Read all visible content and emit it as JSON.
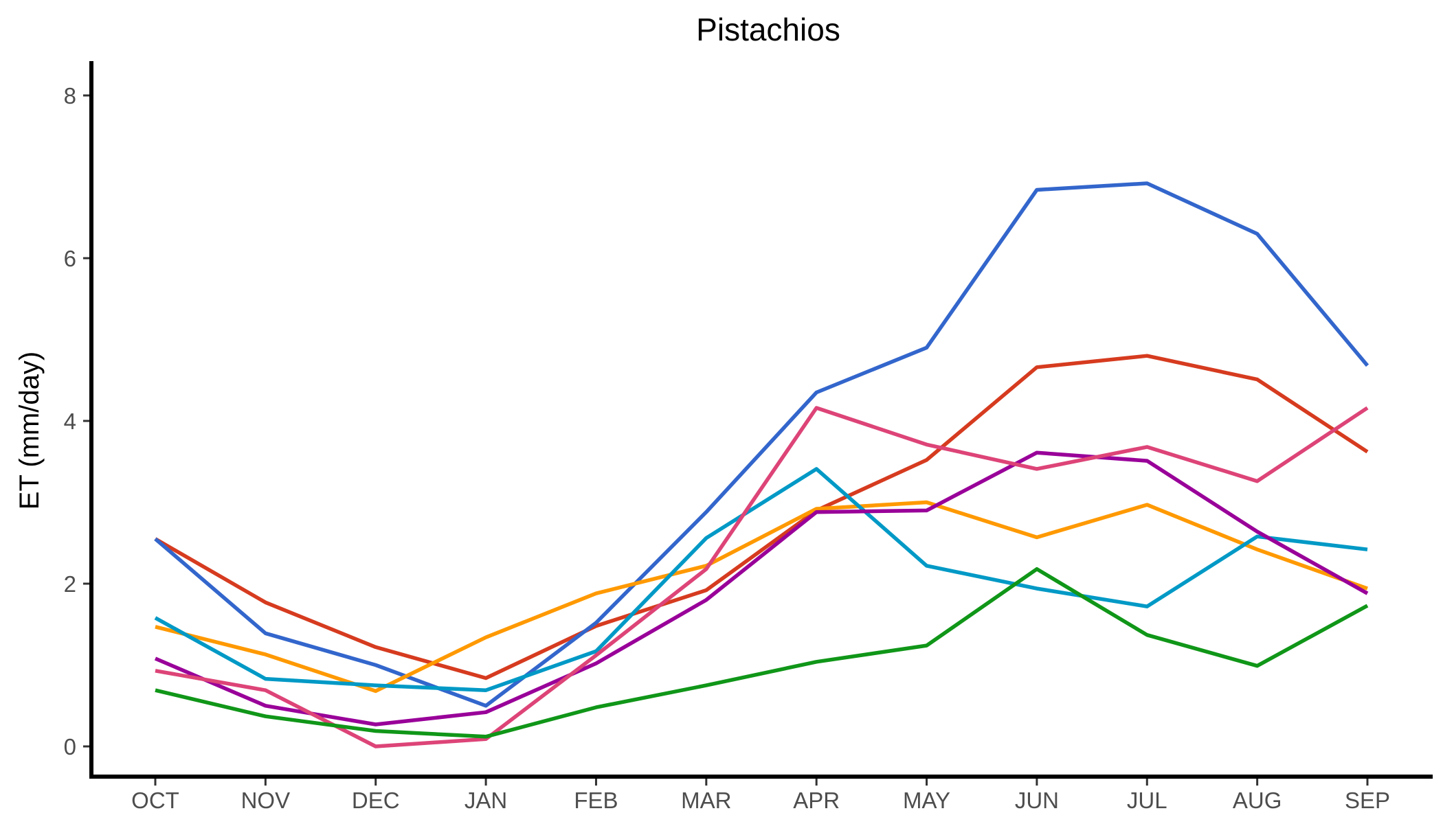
{
  "chart_data": {
    "type": "line",
    "title": "Pistachios",
    "xlabel": "",
    "ylabel": "ET (mm/day)",
    "categories": [
      "OCT",
      "NOV",
      "DEC",
      "JAN",
      "FEB",
      "MAR",
      "APR",
      "MAY",
      "JUN",
      "JUL",
      "AUG",
      "SEP"
    ],
    "ylim": [
      -0.35,
      8.4
    ],
    "yticks": [
      0,
      2,
      4,
      6,
      8
    ],
    "grid": false,
    "legend": "none",
    "series": [
      {
        "color": "#d63b1f",
        "values": [
          2.55,
          1.77,
          1.22,
          0.84,
          1.48,
          1.92,
          2.9,
          3.52,
          4.66,
          4.8,
          4.51,
          3.62
        ]
      },
      {
        "color": "#3366cc",
        "values": [
          2.55,
          1.39,
          1.0,
          0.5,
          1.52,
          2.88,
          4.35,
          4.9,
          6.84,
          6.92,
          6.3,
          4.68
        ]
      },
      {
        "color": "#ff9900",
        "values": [
          1.47,
          1.13,
          0.68,
          1.34,
          1.88,
          2.22,
          2.92,
          3.0,
          2.57,
          2.97,
          2.42,
          1.94
        ]
      },
      {
        "color": "#0099c6",
        "values": [
          1.58,
          0.83,
          0.75,
          0.69,
          1.17,
          2.56,
          3.41,
          2.22,
          1.94,
          1.72,
          2.58,
          2.42
        ]
      },
      {
        "color": "#990099",
        "values": [
          1.08,
          0.5,
          0.27,
          0.42,
          1.02,
          1.8,
          2.88,
          2.9,
          3.61,
          3.51,
          2.64,
          1.88
        ]
      },
      {
        "color": "#dd4477",
        "values": [
          0.93,
          0.69,
          0.0,
          0.09,
          1.12,
          2.18,
          4.16,
          3.71,
          3.41,
          3.68,
          3.26,
          4.16
        ]
      },
      {
        "color": "#109618",
        "values": [
          0.69,
          0.37,
          0.19,
          0.12,
          0.48,
          0.75,
          1.04,
          1.24,
          2.18,
          1.37,
          0.99,
          1.73
        ]
      }
    ]
  }
}
